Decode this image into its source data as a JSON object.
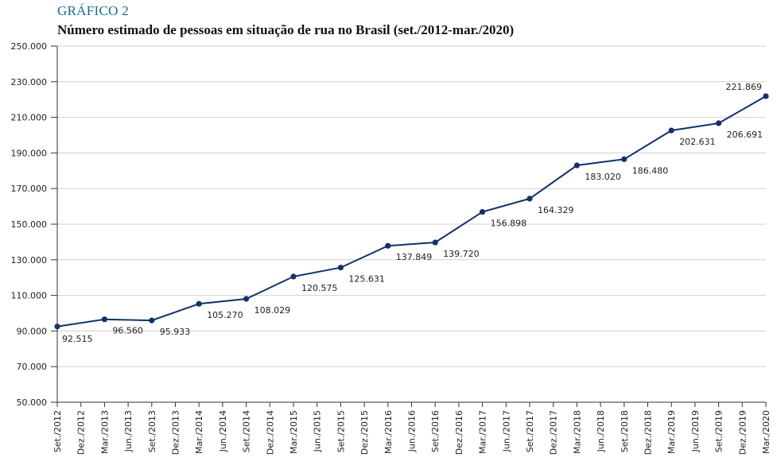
{
  "figure": {
    "label": "GRÁFICO 2",
    "title": "Número estimado de pessoas em situação de rua no Brasil (set./2012-mar./2020)"
  },
  "colors": {
    "line": "#13306b",
    "grid": "#d0d0d0",
    "label": "#1a6a8a"
  },
  "chart_data": {
    "type": "line",
    "title": "Número estimado de pessoas em situação de rua no Brasil (set./2012-mar./2020)",
    "xlabel": "",
    "ylabel": "",
    "ylim": [
      50000,
      250000
    ],
    "grid": true,
    "y_ticks": [
      "50.000",
      "70.000",
      "90.000",
      "110.000",
      "130.000",
      "150.000",
      "170.000",
      "190.000",
      "210.000",
      "230.000",
      "250.000"
    ],
    "categories": [
      "Set./2012",
      "Dez./2012",
      "Mar./2013",
      "Jun./2013",
      "Set./2013",
      "Dez./2013",
      "Mar./2014",
      "Jun./2014",
      "Set./2014",
      "Dez./2014",
      "Mar./2015",
      "Jun./2015",
      "Set./2015",
      "Dez./2015",
      "Mar./2016",
      "Jun./2016",
      "Set./2016",
      "Dez./2016",
      "Mar./2017",
      "Jun./2017",
      "Set./2017",
      "Dez./2017",
      "Mar./2018",
      "Jun./2018",
      "Set./2018",
      "Dez./2018",
      "Mar./2019",
      "Jun./2019",
      "Set./2019",
      "Dez./2019",
      "Mar./2020"
    ],
    "points": [
      {
        "x": "Set./2012",
        "y": 92515,
        "label": "92.515"
      },
      {
        "x": "Mar./2013",
        "y": 96560,
        "label": "96.560"
      },
      {
        "x": "Set./2013",
        "y": 95933,
        "label": "95.933"
      },
      {
        "x": "Mar./2014",
        "y": 105270,
        "label": "105.270"
      },
      {
        "x": "Set./2014",
        "y": 108029,
        "label": "108.029"
      },
      {
        "x": "Mar./2015",
        "y": 120575,
        "label": "120.575"
      },
      {
        "x": "Set./2015",
        "y": 125631,
        "label": "125.631"
      },
      {
        "x": "Mar./2016",
        "y": 137849,
        "label": "137.849"
      },
      {
        "x": "Set./2016",
        "y": 139720,
        "label": "139.720"
      },
      {
        "x": "Mar./2017",
        "y": 156898,
        "label": "156.898"
      },
      {
        "x": "Set./2017",
        "y": 164329,
        "label": "164.329"
      },
      {
        "x": "Mar./2018",
        "y": 183020,
        "label": "183.020"
      },
      {
        "x": "Set./2018",
        "y": 186480,
        "label": "186.480"
      },
      {
        "x": "Mar./2019",
        "y": 202631,
        "label": "202.631"
      },
      {
        "x": "Set./2019",
        "y": 206691,
        "label": "206.691"
      },
      {
        "x": "Mar./2020",
        "y": 221869,
        "label": "221.869"
      }
    ]
  }
}
